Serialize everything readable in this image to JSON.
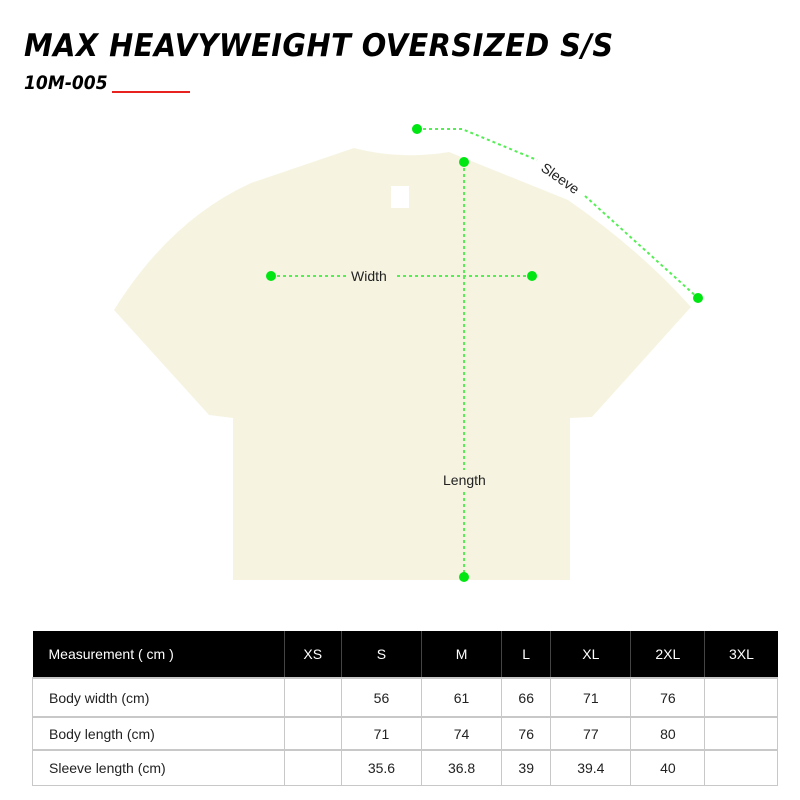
{
  "header": {
    "title": "MAX HEAVYWEIGHT OVERSIZED S/S",
    "code": "10M-005"
  },
  "diagram": {
    "labels": {
      "width": "Width",
      "length": "Length",
      "sleeve": "Sleeve"
    },
    "colors": {
      "marker": "#00e613",
      "garment": "#f6f4e1",
      "accent": "#e8231f"
    }
  },
  "table": {
    "headers": [
      "Measurement ( cm )",
      "XS",
      "S",
      "M",
      "L",
      "XL",
      "2XL",
      "3XL"
    ],
    "rows": [
      {
        "label": "Body width (cm)",
        "values": [
          "",
          "56",
          "61",
          "66",
          "71",
          "76",
          ""
        ]
      },
      {
        "label": "Body length (cm)",
        "values": [
          "",
          "71",
          "74",
          "76",
          "77",
          "80",
          ""
        ]
      },
      {
        "label": "Sleeve length (cm)",
        "values": [
          "",
          "35.6",
          "36.8",
          "39",
          "39.4",
          "40",
          ""
        ]
      }
    ]
  }
}
